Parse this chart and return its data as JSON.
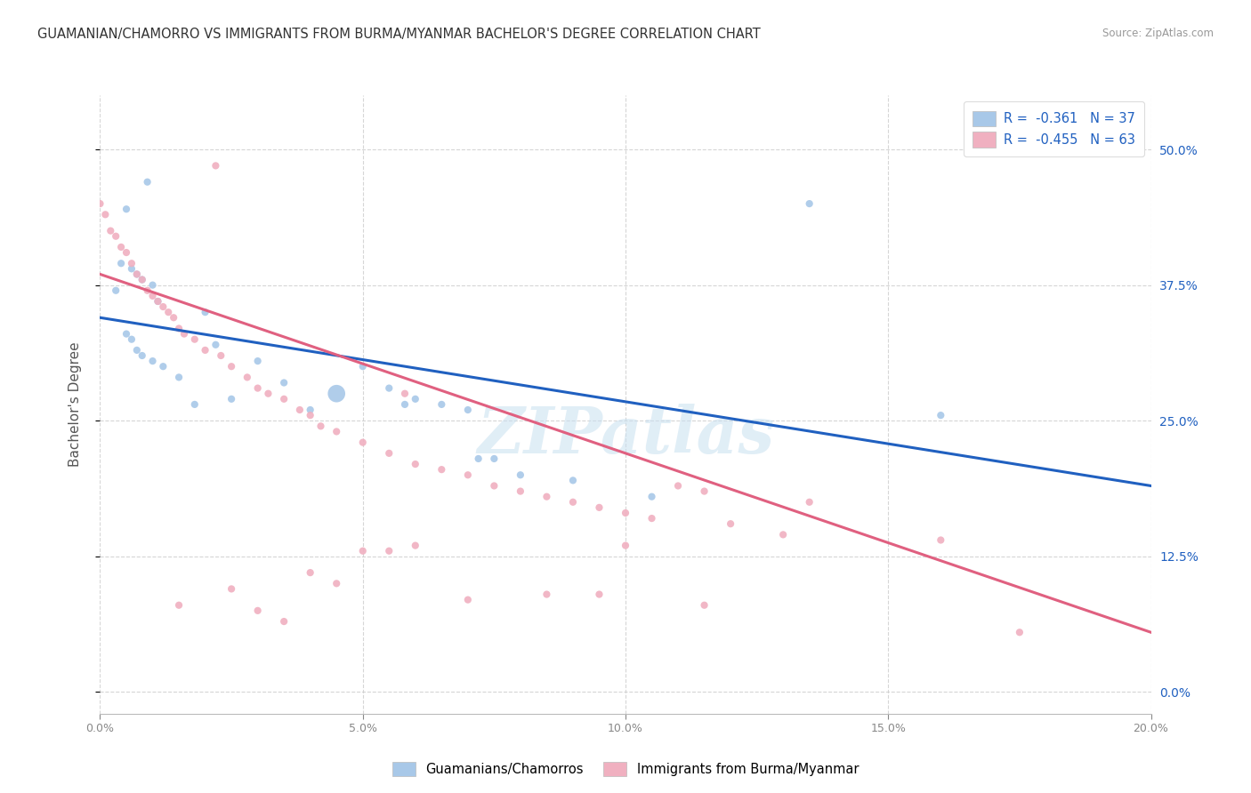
{
  "title": "GUAMANIAN/CHAMORRO VS IMMIGRANTS FROM BURMA/MYANMAR BACHELOR'S DEGREE CORRELATION CHART",
  "source": "Source: ZipAtlas.com",
  "ylabel": "Bachelor's Degree",
  "ytick_values": [
    0.0,
    12.5,
    25.0,
    37.5,
    50.0
  ],
  "xlim": [
    0.0,
    20.0
  ],
  "ylim": [
    -2.0,
    55.0
  ],
  "legend_label1": "Guamanians/Chamorros",
  "legend_label2": "Immigrants from Burma/Myanmar",
  "blue_color": "#a8c8e8",
  "pink_color": "#f0b0c0",
  "line_blue": "#2060c0",
  "line_pink": "#e06080",
  "watermark": "ZIPatlas",
  "blue_scatter": [
    [
      0.3,
      37.0
    ],
    [
      0.5,
      44.5
    ],
    [
      0.9,
      47.0
    ],
    [
      0.4,
      39.5
    ],
    [
      0.6,
      39.0
    ],
    [
      0.7,
      38.5
    ],
    [
      0.8,
      38.0
    ],
    [
      1.0,
      37.5
    ],
    [
      1.1,
      36.0
    ],
    [
      0.5,
      33.0
    ],
    [
      0.6,
      32.5
    ],
    [
      0.7,
      31.5
    ],
    [
      0.8,
      31.0
    ],
    [
      1.0,
      30.5
    ],
    [
      1.2,
      30.0
    ],
    [
      1.5,
      29.0
    ],
    [
      2.0,
      35.0
    ],
    [
      2.2,
      32.0
    ],
    [
      1.8,
      26.5
    ],
    [
      2.5,
      27.0
    ],
    [
      3.0,
      30.5
    ],
    [
      3.5,
      28.5
    ],
    [
      4.0,
      26.0
    ],
    [
      5.0,
      30.0
    ],
    [
      5.5,
      28.0
    ],
    [
      5.8,
      26.5
    ],
    [
      6.5,
      26.5
    ],
    [
      7.0,
      26.0
    ],
    [
      7.2,
      21.5
    ],
    [
      7.5,
      21.5
    ],
    [
      8.0,
      20.0
    ],
    [
      9.0,
      19.5
    ],
    [
      10.5,
      18.0
    ],
    [
      13.5,
      45.0
    ],
    [
      16.0,
      25.5
    ],
    [
      4.5,
      27.5
    ],
    [
      6.0,
      27.0
    ]
  ],
  "blue_scatter_sizes": [
    35,
    35,
    35,
    35,
    35,
    35,
    35,
    35,
    35,
    35,
    35,
    35,
    35,
    35,
    35,
    35,
    35,
    35,
    35,
    35,
    35,
    35,
    35,
    35,
    35,
    35,
    35,
    35,
    35,
    35,
    35,
    35,
    35,
    35,
    35,
    200,
    35
  ],
  "pink_scatter": [
    [
      0.0,
      45.0
    ],
    [
      0.1,
      44.0
    ],
    [
      0.2,
      42.5
    ],
    [
      0.3,
      42.0
    ],
    [
      0.4,
      41.0
    ],
    [
      0.5,
      40.5
    ],
    [
      0.6,
      39.5
    ],
    [
      0.7,
      38.5
    ],
    [
      0.8,
      38.0
    ],
    [
      0.9,
      37.0
    ],
    [
      1.0,
      36.5
    ],
    [
      1.1,
      36.0
    ],
    [
      1.2,
      35.5
    ],
    [
      1.3,
      35.0
    ],
    [
      1.4,
      34.5
    ],
    [
      1.5,
      33.5
    ],
    [
      1.6,
      33.0
    ],
    [
      1.8,
      32.5
    ],
    [
      2.0,
      31.5
    ],
    [
      2.2,
      48.5
    ],
    [
      2.3,
      31.0
    ],
    [
      2.5,
      30.0
    ],
    [
      2.8,
      29.0
    ],
    [
      3.0,
      28.0
    ],
    [
      3.2,
      27.5
    ],
    [
      3.5,
      27.0
    ],
    [
      3.8,
      26.0
    ],
    [
      4.0,
      25.5
    ],
    [
      4.2,
      24.5
    ],
    [
      4.5,
      24.0
    ],
    [
      5.0,
      23.0
    ],
    [
      5.5,
      22.0
    ],
    [
      5.8,
      27.5
    ],
    [
      6.0,
      21.0
    ],
    [
      6.5,
      20.5
    ],
    [
      7.0,
      20.0
    ],
    [
      7.5,
      19.0
    ],
    [
      8.0,
      18.5
    ],
    [
      8.5,
      18.0
    ],
    [
      9.0,
      17.5
    ],
    [
      9.5,
      17.0
    ],
    [
      10.0,
      16.5
    ],
    [
      10.5,
      16.0
    ],
    [
      11.0,
      19.0
    ],
    [
      11.5,
      18.5
    ],
    [
      1.5,
      8.0
    ],
    [
      2.5,
      9.5
    ],
    [
      3.0,
      7.5
    ],
    [
      3.5,
      6.5
    ],
    [
      4.0,
      11.0
    ],
    [
      4.5,
      10.0
    ],
    [
      5.0,
      13.0
    ],
    [
      5.5,
      13.0
    ],
    [
      6.0,
      13.5
    ],
    [
      7.0,
      8.5
    ],
    [
      8.5,
      9.0
    ],
    [
      9.5,
      9.0
    ],
    [
      10.0,
      13.5
    ],
    [
      11.5,
      8.0
    ],
    [
      12.0,
      15.5
    ],
    [
      13.0,
      14.5
    ],
    [
      13.5,
      17.5
    ],
    [
      16.0,
      14.0
    ],
    [
      17.5,
      5.5
    ]
  ],
  "pink_scatter_sizes": [
    35,
    35,
    35,
    35,
    35,
    35,
    35,
    35,
    35,
    35,
    35,
    35,
    35,
    35,
    35,
    35,
    35,
    35,
    35,
    35,
    35,
    35,
    35,
    35,
    35,
    35,
    35,
    35,
    35,
    35,
    35,
    35,
    35,
    35,
    35,
    35,
    35,
    35,
    35,
    35,
    35,
    35,
    35,
    35,
    35,
    35,
    35,
    35,
    35,
    35,
    35,
    35,
    35,
    35,
    35,
    35,
    35,
    35,
    35,
    35,
    35,
    35,
    35,
    35
  ],
  "blue_line_x": [
    0.0,
    20.0
  ],
  "blue_line_y": [
    34.5,
    19.0
  ],
  "pink_line_x": [
    0.0,
    20.0
  ],
  "pink_line_y": [
    38.5,
    5.5
  ],
  "background_color": "#ffffff",
  "grid_color": "#cccccc"
}
